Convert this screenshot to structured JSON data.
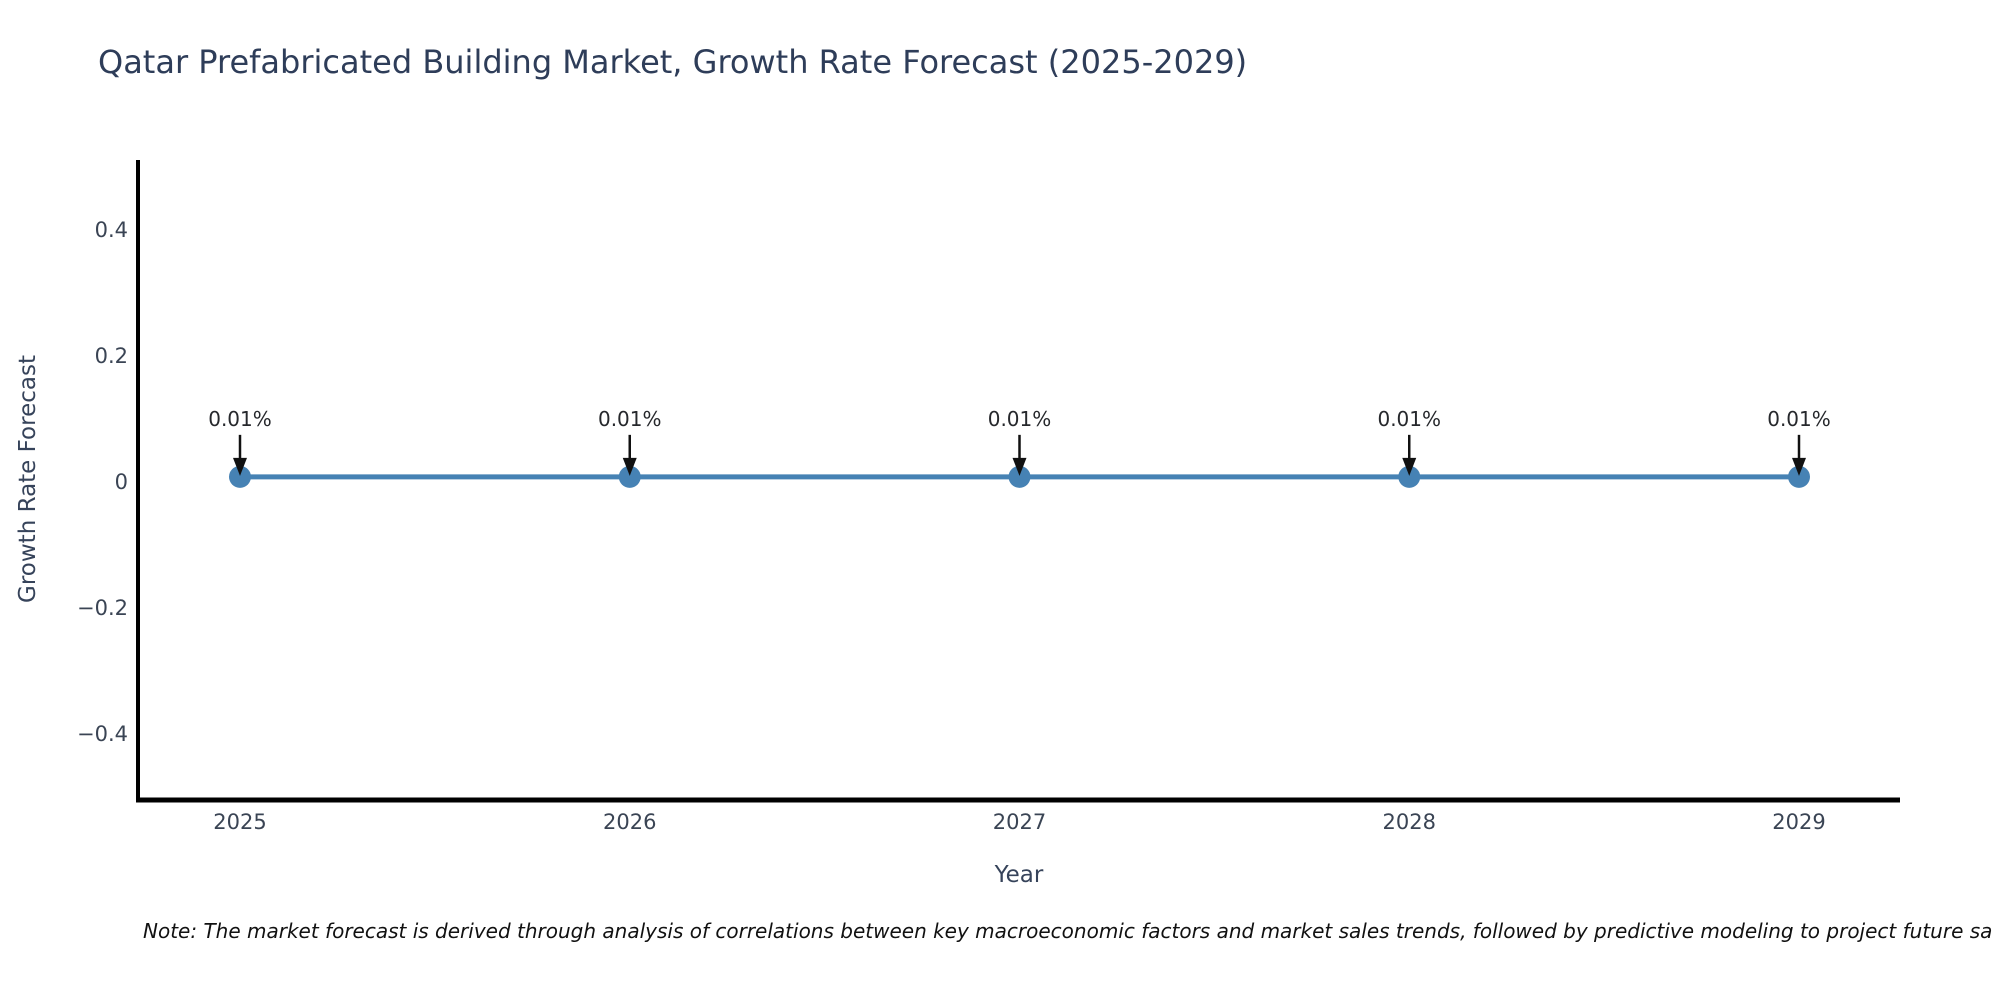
{
  "chart_data": {
    "type": "line",
    "title": "Qatar Prefabricated Building Market, Growth Rate Forecast (2025-2029)",
    "x": [
      2025,
      2026,
      2027,
      2028,
      2029
    ],
    "series": [
      {
        "name": "Growth Rate Forecast",
        "values": [
          0.01,
          0.01,
          0.01,
          0.01,
          0.01
        ]
      }
    ],
    "point_labels": [
      "0.01%",
      "0.01%",
      "0.01%",
      "0.01%",
      "0.01%"
    ],
    "xlabel": "Year",
    "ylabel": "Growth Rate Forecast",
    "xtick_labels": [
      "2025",
      "2026",
      "2027",
      "2028",
      "2029"
    ],
    "ytick_values": [
      0.4,
      0.2,
      0,
      -0.2,
      -0.4
    ],
    "ytick_labels": [
      "0.4",
      "0.2",
      "0",
      "−0.2",
      "−0.4"
    ],
    "ylim": [
      -0.503,
      0.513
    ],
    "grid": false,
    "legend": "none",
    "colors": {
      "line": "#4682b4",
      "marker": "#4682b4",
      "arrow": "#111111",
      "axis": "#000000",
      "title_text": "#2e3d59",
      "tick_text": "#3a4454",
      "annotation_text": "#26282c",
      "note_text": "#111111"
    }
  },
  "note": "Note: The market forecast is derived through analysis of correlations between key macroeconomic factors and market sales trends, followed by predictive modeling to project future sa"
}
